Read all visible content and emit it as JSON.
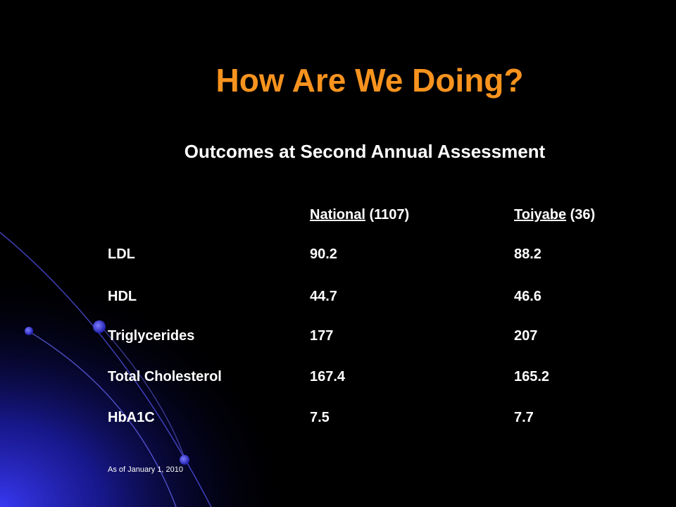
{
  "slide": {
    "title": "How Are We Doing?",
    "subtitle": "Outcomes at Second Annual Assessment",
    "footnote": "As of January 1, 2010"
  },
  "table": {
    "header": {
      "national_label": "National",
      "national_count": " (1107)",
      "toiyabe_label": "Toiyabe",
      "toiyabe_count": " (36)"
    },
    "rows": [
      {
        "metric": "LDL",
        "national": "90.2",
        "toiyabe": "88.2"
      },
      {
        "metric": "HDL",
        "national": "44.7",
        "toiyabe": "46.6"
      },
      {
        "metric": "Triglycerides",
        "national": "177",
        "toiyabe": "207"
      },
      {
        "metric": "Total Cholesterol",
        "national": "167.4",
        "toiyabe": "165.2"
      },
      {
        "metric": "HbA1C",
        "national": "7.5",
        "toiyabe": "7.7"
      }
    ]
  },
  "colors": {
    "background": "#000000",
    "title": "#F7931E",
    "text": "#FFFFFF",
    "accent_glow": "#2A2AE0"
  }
}
